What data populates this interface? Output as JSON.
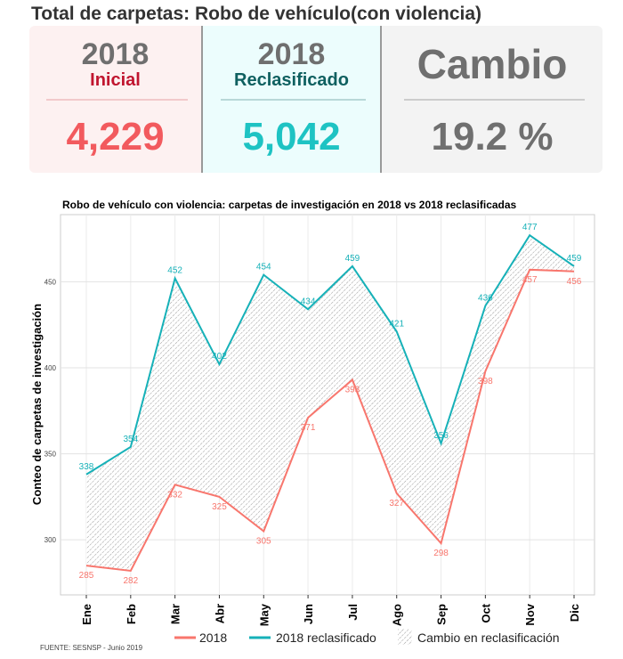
{
  "header": {
    "title": "Total de carpetas: Robo de vehículo(con violencia)"
  },
  "cards": [
    {
      "year": "2018",
      "label": "Inicial",
      "value": "4,229"
    },
    {
      "year": "2018",
      "label": "Reclasificado",
      "value": "5,042"
    },
    {
      "label": "Cambio",
      "value": "19.2 %"
    }
  ],
  "colors": {
    "inicial": "#f8766d",
    "reclasificado": "#16b1b8",
    "inicial_label": "#c0152f",
    "reclas_label": "#0f6060"
  },
  "chart_data": {
    "type": "line",
    "title": "Robo de vehículo con violencia: carpetas de investigación en 2018 vs 2018 reclasificadas",
    "xlabel": "",
    "ylabel": "Conteo de carpetas de investigación",
    "categories": [
      "Ene",
      "Feb",
      "Mar",
      "Abr",
      "May",
      "Jun",
      "Jul",
      "Ago",
      "Sep",
      "Oct",
      "Nov",
      "Dic"
    ],
    "series": [
      {
        "name": "2018",
        "values": [
          285,
          282,
          332,
          325,
          305,
          371,
          393,
          327,
          298,
          398,
          457,
          456
        ]
      },
      {
        "name": "2018 reclasificado",
        "values": [
          338,
          354,
          452,
          402,
          454,
          434,
          459,
          421,
          356,
          436,
          477,
          459
        ]
      }
    ],
    "fill_legend": "Cambio en reclasificación",
    "yticks": [
      300,
      350,
      400,
      450
    ],
    "ylim": [
      268,
      489
    ],
    "grid": true,
    "legend": "bottom"
  },
  "source": "FUENTE: SESNSP - Junio 2019"
}
